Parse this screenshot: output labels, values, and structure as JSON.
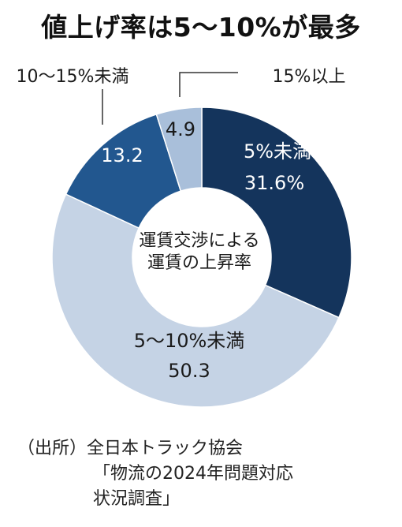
{
  "chart_data": {
    "type": "donut",
    "title": "値上げ率は5～10%が最多",
    "center_label_lines": [
      "運賃交渉による",
      "運賃の上昇率"
    ],
    "slices": [
      {
        "label": "5%未満",
        "value_label": "31.6%",
        "value": 31.6,
        "color": "#14345c"
      },
      {
        "label": "5～10%未満",
        "value_label": "50.3",
        "value": 50.3,
        "color": "#c5d3e5"
      },
      {
        "label": "10～15%未満",
        "value_label": "13.2",
        "value": 13.2,
        "color": "#22578f"
      },
      {
        "label": "15%以上",
        "value_label": "4.9",
        "value": 4.9,
        "color": "#a9bfda"
      }
    ]
  },
  "source": {
    "line1": "（出所）全日本トラック協会",
    "line2": "「物流の2024年問題対応",
    "line3": "状況調査」"
  }
}
